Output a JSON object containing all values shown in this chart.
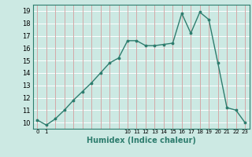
{
  "title": "",
  "xlabel": "Humidex (Indice chaleur)",
  "ylabel": "",
  "x": [
    0,
    1,
    2,
    3,
    4,
    5,
    6,
    7,
    8,
    9,
    10,
    11,
    12,
    13,
    14,
    15,
    16,
    17,
    18,
    19,
    20,
    21,
    22,
    23
  ],
  "y": [
    10.2,
    9.8,
    10.3,
    11.0,
    11.8,
    12.5,
    13.2,
    14.0,
    14.8,
    15.2,
    16.6,
    16.6,
    16.2,
    16.2,
    16.3,
    16.4,
    18.8,
    17.2,
    18.9,
    18.3,
    14.8,
    11.2,
    11.0,
    10.0
  ],
  "line_color": "#2e7d6e",
  "bg_color": "#cce9e3",
  "grid_h_color": "#ffffff",
  "grid_v_color": "#d4a8a8",
  "ylim": [
    9.5,
    19.5
  ],
  "xlim": [
    -0.5,
    23.5
  ],
  "yticks": [
    10,
    11,
    12,
    13,
    14,
    15,
    16,
    17,
    18,
    19
  ],
  "xtick_positions": [
    0,
    1,
    10,
    11,
    12,
    13,
    14,
    15,
    16,
    17,
    18,
    19,
    20,
    21,
    22,
    23
  ],
  "xtick_labels": [
    "0",
    "1",
    "10",
    "11",
    "12",
    "13",
    "14",
    "15",
    "16",
    "17",
    "18",
    "19",
    "20",
    "21",
    "22",
    "23"
  ],
  "marker": ".",
  "markersize": 3.5,
  "linewidth": 1.0
}
